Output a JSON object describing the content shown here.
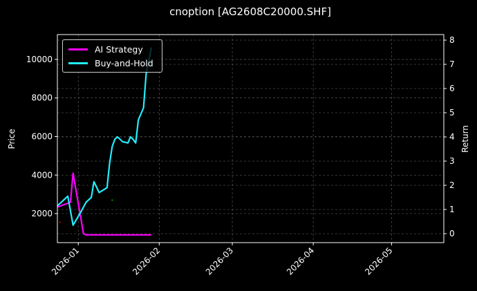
{
  "title": "cnoption [AG2608C20000.SHF]",
  "colors": {
    "background": "#000000",
    "ai_strategy": "#ff00ff",
    "buy_and_hold": "#22eeff",
    "grid": "#555555",
    "frame": "#ffffff"
  },
  "legend": {
    "items": [
      {
        "label": "AI Strategy",
        "color": "#ff00ff"
      },
      {
        "label": "Buy-and-Hold",
        "color": "#22eeff"
      }
    ]
  },
  "axes": {
    "left_label": "Price",
    "right_label": "Return",
    "left_ticks": [
      "2000",
      "4000",
      "6000",
      "8000",
      "10000"
    ],
    "right_ticks": [
      "0",
      "1",
      "2",
      "3",
      "4",
      "5",
      "6",
      "7",
      "8"
    ],
    "x_ticks": [
      "2026-01",
      "2026-02",
      "2026-03",
      "2026-04",
      "2026-05"
    ]
  },
  "chart_data": {
    "type": "line",
    "title": "cnoption [AG2608C20000.SHF]",
    "xlabel": "",
    "ylabel": "Price",
    "y2label": "Return",
    "ylim": [
      494,
      11290
    ],
    "y2lim": [
      -0.37,
      8.23
    ],
    "xlim": [
      "2025-12-24",
      "2026-05-21"
    ],
    "grid": true,
    "legend_position": "upper left",
    "x_ticks": [
      "2026-01",
      "2026-02",
      "2026-03",
      "2026-04",
      "2026-05"
    ],
    "series": [
      {
        "name": "AI Strategy",
        "axis": "right",
        "color": "#ff00ff",
        "x": [
          "2025-12-24",
          "2025-12-29",
          "2025-12-30",
          "2026-01-03",
          "2026-01-04",
          "2026-01-29"
        ],
        "values": [
          1.1,
          1.3,
          2.5,
          0.0,
          -0.05,
          -0.05
        ]
      },
      {
        "name": "Buy-and-Hold",
        "axis": "right",
        "color": "#22eeff",
        "x": [
          "2025-12-24",
          "2025-12-28",
          "2025-12-30",
          "2026-01-02",
          "2026-01-04",
          "2026-01-06",
          "2026-01-07",
          "2026-01-09",
          "2026-01-12",
          "2026-01-13",
          "2026-01-14",
          "2026-01-15",
          "2026-01-16",
          "2026-01-18",
          "2026-01-20",
          "2026-01-21",
          "2026-01-22",
          "2026-01-23",
          "2026-01-24",
          "2026-01-26",
          "2026-01-27",
          "2026-01-29"
        ],
        "values": [
          1.15,
          1.55,
          0.35,
          0.9,
          1.3,
          1.5,
          2.15,
          1.7,
          1.9,
          2.9,
          3.6,
          3.9,
          4.0,
          3.8,
          3.75,
          4.0,
          3.9,
          3.75,
          4.7,
          5.2,
          6.6,
          7.7
        ]
      }
    ],
    "scatter_markers": [
      {
        "x": "2025-12-25",
        "price": 1550,
        "color": "#ff0000"
      },
      {
        "x": "2026-01-14",
        "price": 2700,
        "color": "#00cc00"
      }
    ]
  }
}
